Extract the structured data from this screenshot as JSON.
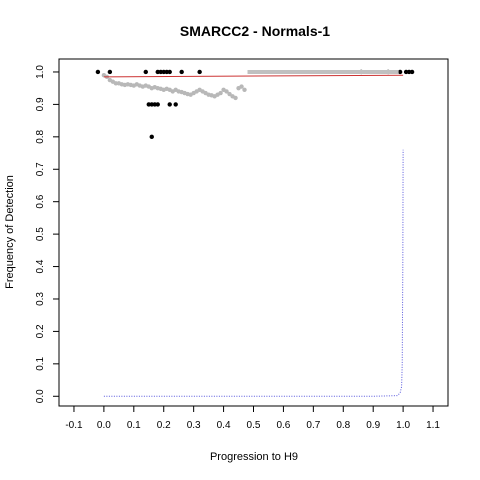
{
  "chart_data": {
    "type": "scatter",
    "title": "SMARCC2 - Normals-1",
    "xlabel": "Progression to H9",
    "ylabel": "Frequency of Detection",
    "xlim": [
      -0.15,
      1.15
    ],
    "ylim": [
      -0.03,
      1.04
    ],
    "x_ticks": [
      "-0.1",
      "0.0",
      "0.1",
      "0.2",
      "0.3",
      "0.4",
      "0.5",
      "0.6",
      "0.7",
      "0.8",
      "0.9",
      "1.0",
      "1.1"
    ],
    "y_ticks": [
      "0.0",
      "0.1",
      "0.2",
      "0.3",
      "0.4",
      "0.5",
      "0.6",
      "0.7",
      "0.8",
      "0.9",
      "1.0"
    ],
    "grid": false,
    "legend": null,
    "series": [
      {
        "kind": "points",
        "color": "#000000",
        "x": [
          -0.02,
          0.02,
          0.14,
          0.18,
          0.19,
          0.2,
          0.21,
          0.22,
          0.26,
          0.32,
          0.86,
          0.95,
          0.99,
          1.01,
          1.02,
          1.03,
          0.15,
          0.16,
          0.17,
          0.18,
          0.22,
          0.24,
          0.16
        ],
        "y": [
          1.0,
          1.0,
          1.0,
          1.0,
          1.0,
          1.0,
          1.0,
          1.0,
          1.0,
          1.0,
          1.0,
          1.0,
          1.0,
          1.0,
          1.0,
          1.0,
          0.9,
          0.9,
          0.9,
          0.9,
          0.9,
          0.9,
          0.8
        ]
      },
      {
        "kind": "points",
        "color": "#b8b8b8",
        "x": [
          0.0,
          0.01,
          0.02,
          0.03,
          0.04,
          0.05,
          0.06,
          0.07,
          0.08,
          0.09,
          0.1,
          0.11,
          0.12,
          0.13,
          0.14,
          0.15,
          0.16,
          0.17,
          0.18,
          0.19,
          0.2,
          0.21,
          0.22,
          0.23,
          0.24,
          0.25,
          0.26,
          0.27,
          0.28,
          0.29,
          0.3,
          0.31,
          0.32,
          0.33,
          0.34,
          0.35,
          0.36,
          0.37,
          0.38,
          0.39,
          0.4,
          0.41,
          0.42,
          0.43,
          0.44,
          0.45,
          0.46,
          0.47
        ],
        "y": [
          0.99,
          0.985,
          0.975,
          0.97,
          0.965,
          0.965,
          0.962,
          0.96,
          0.962,
          0.96,
          0.958,
          0.962,
          0.958,
          0.955,
          0.958,
          0.955,
          0.95,
          0.953,
          0.95,
          0.948,
          0.945,
          0.948,
          0.945,
          0.94,
          0.945,
          0.94,
          0.938,
          0.935,
          0.932,
          0.93,
          0.935,
          0.94,
          0.945,
          0.94,
          0.935,
          0.93,
          0.928,
          0.925,
          0.93,
          0.935,
          0.945,
          0.94,
          0.932,
          0.925,
          0.92,
          0.95,
          0.955,
          0.945
        ]
      },
      {
        "kind": "segment",
        "color": "#c0c0c0",
        "x": [
          0.48,
          0.985
        ],
        "y": [
          1.0,
          1.0
        ]
      },
      {
        "kind": "line",
        "color": "#cc3333",
        "x": [
          0.0,
          1.0
        ],
        "y": [
          0.985,
          0.99
        ]
      },
      {
        "kind": "line",
        "color": "#5555dd",
        "dash": "dotted",
        "x": [
          0.0,
          0.5,
          0.9,
          0.98,
          0.99,
          0.995,
          0.997,
          0.999,
          1.0
        ],
        "y": [
          0.0,
          0.0,
          0.0,
          0.002,
          0.01,
          0.03,
          0.1,
          0.4,
          0.76
        ]
      }
    ]
  }
}
